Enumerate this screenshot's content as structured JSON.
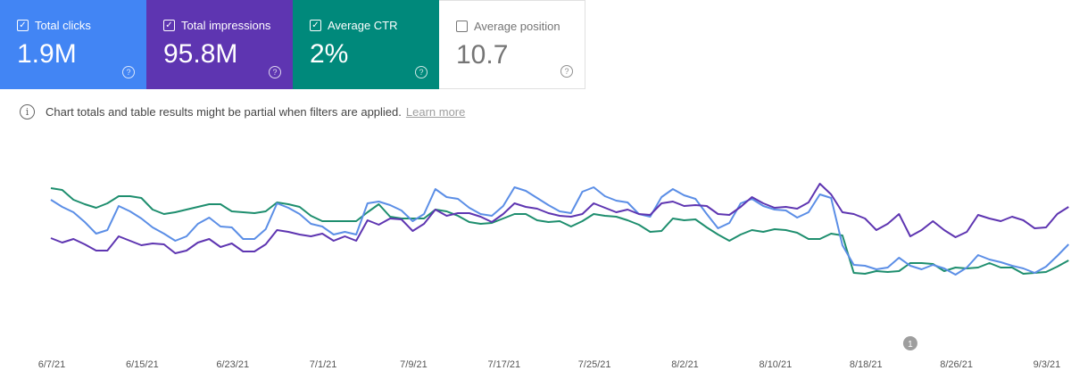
{
  "metrics": [
    {
      "label": "Total clicks",
      "value": "1.9M",
      "checked": true,
      "color": "#4285f4"
    },
    {
      "label": "Total impressions",
      "value": "95.8M",
      "checked": true,
      "color": "#5e35b1"
    },
    {
      "label": "Average CTR",
      "value": "2%",
      "checked": true,
      "color": "#00897b"
    },
    {
      "label": "Average position",
      "value": "10.7",
      "checked": false,
      "color": "#ffffff"
    }
  ],
  "help_icon": "?",
  "notice": {
    "icon": "i",
    "text": "Chart totals and table results might be partial when filters are applied.",
    "link": "Learn more"
  },
  "chart_data": {
    "type": "line",
    "x_start": "6/7/21",
    "x_step_days": 1,
    "tick_labels": [
      "6/7/21",
      "6/15/21",
      "6/23/21",
      "7/1/21",
      "7/9/21",
      "7/17/21",
      "7/25/21",
      "8/2/21",
      "8/10/21",
      "8/18/21",
      "8/26/21",
      "9/3/21"
    ],
    "ylim": [
      -100,
      120
    ],
    "y_axis": "none printed (relative levels)",
    "grid": false,
    "annotation": {
      "label": "1",
      "date": "8/22/21"
    },
    "series": [
      {
        "name": "Average CTR",
        "color": "#1e8e6e",
        "values": [
          89,
          87,
          76,
          71,
          67,
          72,
          80,
          80,
          78,
          65,
          60,
          62,
          65,
          68,
          71,
          71,
          63,
          62,
          61,
          63,
          73,
          71,
          68,
          58,
          52,
          52,
          52,
          52,
          62,
          71,
          57,
          55,
          55,
          55,
          65,
          63,
          58,
          51,
          49,
          50,
          55,
          60,
          60,
          53,
          51,
          52,
          46,
          52,
          60,
          58,
          57,
          53,
          48,
          40,
          41,
          55,
          53,
          54,
          45,
          37,
          30,
          37,
          42,
          40,
          43,
          42,
          39,
          32,
          32,
          38,
          36,
          -6,
          -7,
          -4,
          -5,
          -4,
          5,
          5,
          4,
          -4,
          0,
          -1,
          0,
          5,
          0,
          0,
          -7,
          -6,
          -5,
          1,
          8
        ]
      },
      {
        "name": "Total clicks",
        "color": "#5b8ee6",
        "values": [
          76,
          68,
          62,
          51,
          38,
          42,
          69,
          63,
          55,
          45,
          38,
          30,
          35,
          49,
          56,
          46,
          45,
          32,
          32,
          43,
          72,
          67,
          60,
          49,
          46,
          37,
          40,
          37,
          72,
          74,
          70,
          64,
          52,
          60,
          88,
          79,
          77,
          67,
          60,
          58,
          69,
          90,
          86,
          78,
          70,
          63,
          61,
          85,
          90,
          80,
          75,
          73,
          60,
          57,
          79,
          88,
          81,
          77,
          60,
          44,
          50,
          72,
          77,
          69,
          65,
          64,
          56,
          62,
          82,
          78,
          25,
          3,
          2,
          -2,
          0,
          11,
          2,
          -2,
          3,
          -1,
          -8,
          0,
          14,
          9,
          6,
          2,
          -1,
          -6,
          1,
          13,
          26
        ]
      },
      {
        "name": "Total impressions",
        "color": "#5e35b1",
        "values": [
          33,
          28,
          32,
          26,
          19,
          19,
          35,
          30,
          25,
          27,
          26,
          16,
          19,
          28,
          32,
          23,
          27,
          18,
          18,
          26,
          42,
          40,
          37,
          35,
          38,
          30,
          35,
          30,
          53,
          48,
          55,
          54,
          41,
          49,
          65,
          58,
          61,
          61,
          57,
          51,
          60,
          72,
          68,
          66,
          61,
          58,
          57,
          60,
          72,
          67,
          62,
          65,
          60,
          59,
          72,
          74,
          69,
          70,
          69,
          60,
          59,
          68,
          79,
          72,
          67,
          68,
          66,
          73,
          94,
          82,
          62,
          60,
          55,
          42,
          49,
          60,
          35,
          42,
          52,
          42,
          34,
          40,
          59,
          55,
          52,
          57,
          53,
          44,
          45,
          60,
          68
        ]
      }
    ]
  }
}
